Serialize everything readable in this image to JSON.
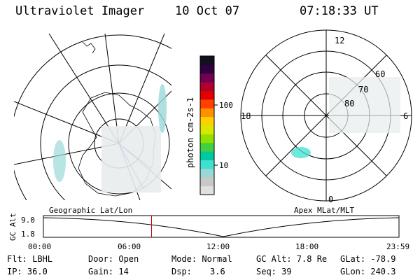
{
  "header": {
    "title": "Ultraviolet Imager",
    "date": "10 Oct 07",
    "time": "07:18:33 UT"
  },
  "geo_map": {
    "label": "Geographic Lat/Lon"
  },
  "colorbar": {
    "label": "photon cm-2s-1",
    "ticks": [
      "100",
      "10"
    ],
    "colors": [
      "#e0e0e0",
      "#c8c8c8",
      "#9ad8d8",
      "#40e0d0",
      "#00c8a0",
      "#40d040",
      "#90e000",
      "#d8e800",
      "#ffd000",
      "#ff9000",
      "#ff4000",
      "#e00000",
      "#b00030",
      "#700050",
      "#300040",
      "#101020"
    ]
  },
  "polar_map": {
    "label": "Apex MLat/MLT",
    "mlt_labels": {
      "top": "12",
      "left": "18",
      "right": "6",
      "bottom": "0"
    },
    "lat_labels": [
      "60",
      "70",
      "80"
    ]
  },
  "timeline": {
    "ylabel": "GC Alt",
    "yticks": [
      "9.0",
      "1.8"
    ],
    "xticks": [
      "00:00",
      "06:00",
      "12:00",
      "18:00",
      "23:59"
    ],
    "marker_time_hours": 7.3
  },
  "info": {
    "filter": "Flt: LBHL",
    "ip": "IP: 36.0",
    "door": "Door: Open",
    "gain": "Gain: 14",
    "mode": "Mode: Normal",
    "dsp_label": "Dsp:",
    "dsp_value": "3.6",
    "gc_alt": "GC Alt: 7.8 Re",
    "seq": "Seq: 39",
    "glat": "GLat: -78.9",
    "glon": "GLon: 240.3"
  }
}
